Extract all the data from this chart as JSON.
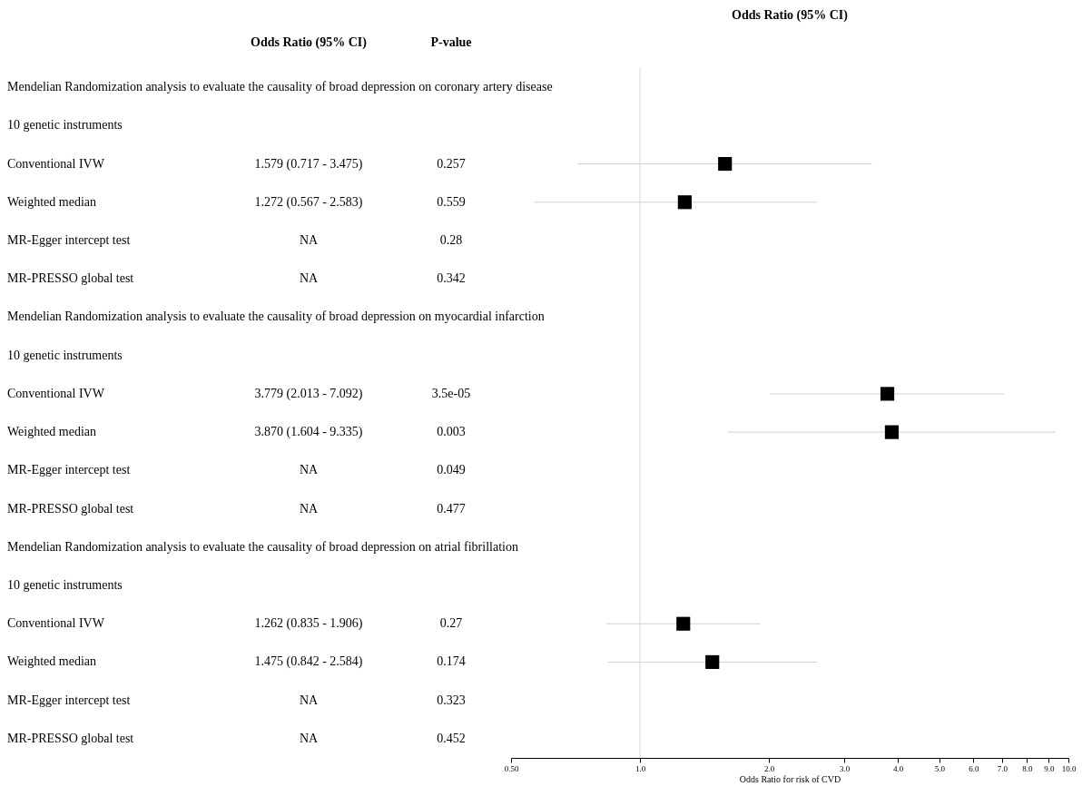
{
  "chart_data": {
    "type": "scatter",
    "orientation": "horizontal",
    "title": "Odds Ratio (95% CI)",
    "xlabel": "Odds Ratio for risk of CVD",
    "log": "x",
    "marker": "square",
    "categories": [
      "Mendelian Randomization analysis to evaluate the causality of broad depression on coronary artery disease",
      "10 genetic  instruments",
      "Conventional  IVW",
      "Weighted  median",
      "MR-Egger  intercept  test",
      "MR-PRESSO global  test",
      "Mendelian Randomization analysis to evaluate the causality of broad depression on myocardial infarction",
      "10 genetic  instruments",
      "Conventional  IVW",
      "Weighted  median",
      "MR-Egger  intercept  test",
      "MR-PRESSO global  test",
      "Mendelian Randomization analysis to evaluate the causality of broad depression on atrial fibrillation",
      "10 genetic  instruments",
      "Conventional  IVW",
      "Weighted  median",
      "MR-Egger  intercept  test",
      "MR-PRESSO global  test"
    ],
    "series": [
      {
        "name": "Odds Ratio (95% CI)",
        "color": "#000000",
        "values": [
          null,
          null,
          1.579,
          1.272,
          null,
          null,
          null,
          null,
          3.779,
          3.87,
          null,
          null,
          null,
          null,
          1.262,
          1.475,
          null,
          null
        ],
        "errors": [
          null,
          null,
          [
            0.717,
            3.475
          ],
          [
            0.567,
            2.583
          ],
          null,
          null,
          null,
          null,
          [
            2.013,
            7.092
          ],
          [
            1.604,
            9.335
          ],
          null,
          null,
          null,
          null,
          [
            0.835,
            1.906
          ],
          [
            0.842,
            2.584
          ],
          null,
          null
        ],
        "value_labels": [
          null,
          null,
          "1.579 (0.717 - 3.475)",
          "1.272 (0.567 - 2.583)",
          "NA",
          "NA",
          null,
          null,
          "3.779 (2.013 - 7.092)",
          "3.870 (1.604 - 9.335)",
          "NA",
          "NA",
          null,
          null,
          "1.262 (0.835 - 1.906)",
          "1.475 (0.842 - 2.584)",
          "NA",
          "NA"
        ]
      },
      {
        "name": "P-value",
        "values": [
          null,
          null,
          null,
          null,
          null,
          null,
          null,
          null,
          null,
          null,
          null,
          null,
          null,
          null,
          null,
          null,
          null,
          null
        ],
        "value_labels": [
          null,
          null,
          "0.257",
          "0.559",
          "0.28",
          "0.342",
          null,
          null,
          "3.5e-05",
          "0.003",
          "0.049",
          "0.477",
          null,
          null,
          "0.27",
          "0.174",
          "0.323",
          "0.452"
        ]
      }
    ],
    "xlim": [
      0.5,
      10
    ],
    "xticks": [
      {
        "value": 0.5,
        "label": "0.50"
      },
      {
        "value": 1,
        "label": "1.0"
      },
      {
        "value": 2,
        "label": "2.0"
      },
      {
        "value": 3,
        "label": "3.0"
      },
      {
        "value": 4,
        "label": "4.0"
      },
      {
        "value": 5,
        "label": "5.0"
      },
      {
        "value": 6,
        "label": "6.0"
      },
      {
        "value": 7,
        "label": "7.0"
      },
      {
        "value": 8,
        "label": "8.0"
      },
      {
        "value": 9,
        "label": "9.0"
      },
      {
        "value": 10,
        "label": "10.0"
      }
    ],
    "ref_lines": [
      {
        "axis": "x",
        "value": 1,
        "color": "#d9d9d9"
      }
    ]
  }
}
